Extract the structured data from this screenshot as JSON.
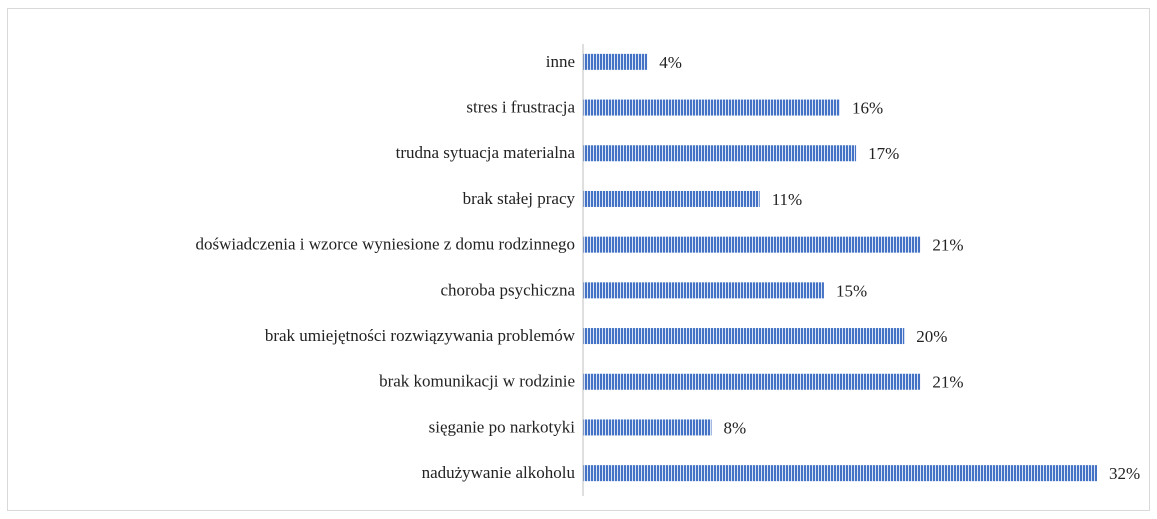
{
  "chart_data": {
    "type": "bar",
    "orientation": "horizontal",
    "categories": [
      "inne",
      "stres i frustracja",
      "trudna sytuacja materialna",
      "brak stałej pracy",
      "doświadczenia i wzorce wyniesione z domu rodzinnego",
      "choroba psychiczna",
      "brak umiejętności rozwiązywania problemów",
      "brak komunikacji w rodzinie",
      "sięganie po narkotyki",
      "nadużywanie alkoholu"
    ],
    "values": [
      4,
      16,
      17,
      11,
      21,
      15,
      20,
      21,
      8,
      32
    ],
    "value_labels": [
      "4%",
      "16%",
      "17%",
      "11%",
      "21%",
      "15%",
      "20%",
      "21%",
      "8%",
      "32%"
    ],
    "color": "#4472c4",
    "xlim": [
      0,
      32
    ]
  }
}
